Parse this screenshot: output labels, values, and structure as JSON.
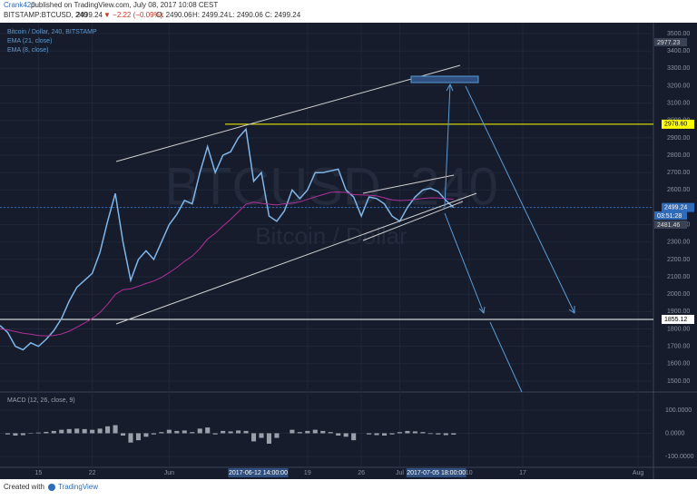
{
  "header": {
    "publisher": "Crank420",
    "published": "published on TradingView.com, July 08, 2017 10:08 CEST",
    "symbol": "BITSTAMP:BTCUSD, 240",
    "last": "2499.24",
    "change": "▼ −2.22 (−0.09%)",
    "ohlc": [
      "O: 2490.06",
      "H: 2499.24",
      "L: 2490.06",
      "C: 2499.24"
    ]
  },
  "chart_data": {
    "type": "line",
    "watermark": [
      "BTCUSD, 240",
      "Bitcoin / Dollar"
    ],
    "other_indicator": "EMA (8, close)",
    "x": [
      "2017-05-10",
      "2017-05-11",
      "2017-05-12",
      "2017-05-13",
      "2017-05-14",
      "2017-05-15",
      "2017-05-16",
      "2017-05-17",
      "2017-05-18",
      "2017-05-19",
      "2017-05-20",
      "2017-05-21",
      "2017-05-22",
      "2017-05-23",
      "2017-05-24",
      "2017-05-25",
      "2017-05-26",
      "2017-05-27",
      "2017-05-28",
      "2017-05-29",
      "2017-05-30",
      "2017-05-31",
      "2017-06-01",
      "2017-06-02",
      "2017-06-03",
      "2017-06-04",
      "2017-06-05",
      "2017-06-06",
      "2017-06-07",
      "2017-06-08",
      "2017-06-09",
      "2017-06-10",
      "2017-06-11",
      "2017-06-12",
      "2017-06-13",
      "2017-06-14",
      "2017-06-15",
      "2017-06-16",
      "2017-06-17",
      "2017-06-18",
      "2017-06-19",
      "2017-06-20",
      "2017-06-21",
      "2017-06-22",
      "2017-06-23",
      "2017-06-24",
      "2017-06-25",
      "2017-06-26",
      "2017-06-27",
      "2017-06-28",
      "2017-06-29",
      "2017-06-30",
      "2017-07-01",
      "2017-07-02",
      "2017-07-03",
      "2017-07-04",
      "2017-07-05",
      "2017-07-06",
      "2017-07-07",
      "2017-07-08"
    ],
    "series": [
      {
        "name": "Bitcoin / Dollar, 240, BITSTAMP",
        "color": "#7fb6ea",
        "values": [
          1820,
          1780,
          1700,
          1680,
          1720,
          1700,
          1740,
          1790,
          1860,
          1960,
          2040,
          2080,
          2120,
          2240,
          2420,
          2580,
          2300,
          2080,
          2200,
          2250,
          2200,
          2300,
          2400,
          2460,
          2540,
          2520,
          2700,
          2850,
          2700,
          2800,
          2820,
          2900,
          2950,
          2650,
          2700,
          2450,
          2420,
          2480,
          2600,
          2550,
          2600,
          2700,
          2700,
          2710,
          2720,
          2600,
          2560,
          2450,
          2560,
          2550,
          2520,
          2450,
          2420,
          2500,
          2560,
          2600,
          2610,
          2590,
          2540,
          2499.24
        ]
      },
      {
        "name": "EMA (21, close)",
        "color": "#b0309a",
        "values": [
          1800,
          1795,
          1785,
          1775,
          1770,
          1762,
          1760,
          1762,
          1771,
          1787,
          1810,
          1834,
          1860,
          1894,
          1942,
          1999,
          2026,
          2031,
          2046,
          2062,
          2076,
          2096,
          2124,
          2154,
          2189,
          2219,
          2263,
          2317,
          2351,
          2392,
          2431,
          2474,
          2518,
          2530,
          2523,
          2518,
          2514,
          2521,
          2524,
          2531,
          2546,
          2560,
          2573,
          2587,
          2588,
          2586,
          2573,
          2572,
          2570,
          2566,
          2555,
          2543,
          2539,
          2541,
          2546,
          2551,
          2555,
          2554,
          2550,
          2546
        ]
      }
    ],
    "xlim": [
      "2017-05-10",
      "2017-08-03"
    ],
    "xticks": [
      {
        "value": "2017-05-15",
        "label": "15"
      },
      {
        "value": "2017-05-22",
        "label": "22"
      },
      {
        "value": "2017-06-01",
        "label": "Jun"
      },
      {
        "value": "2017-06-19",
        "label": "19"
      },
      {
        "value": "2017-06-26",
        "label": "26"
      },
      {
        "value": "2017-07-01",
        "label": "Jul"
      },
      {
        "value": "2017-07-10",
        "label": "10"
      },
      {
        "value": "2017-07-17",
        "label": "17"
      },
      {
        "value": "2017-08-01",
        "label": "Aug"
      }
    ],
    "crosshair_times": [
      "2017-06-12 14:00:00",
      "2017-07-05 18:00:00"
    ],
    "ylim": [
      1437,
      3563
    ],
    "yticks": [
      {
        "value": 1500,
        "label": "1500.00"
      },
      {
        "value": 1600,
        "label": "1600.00"
      },
      {
        "value": 1700,
        "label": "1700.00"
      },
      {
        "value": 1800,
        "label": "1800.00"
      },
      {
        "value": 1900,
        "label": "1900.00"
      },
      {
        "value": 2000,
        "label": "2000.00"
      },
      {
        "value": 2100,
        "label": "2100.00"
      },
      {
        "value": 2200,
        "label": "2200.00"
      },
      {
        "value": 2300,
        "label": "2300.00"
      },
      {
        "value": 2400,
        "label": "2400.00"
      },
      {
        "value": 2500,
        "label": "2500.00"
      },
      {
        "value": 2600,
        "label": "2600.00"
      },
      {
        "value": 2700,
        "label": "2700.00"
      },
      {
        "value": 2800,
        "label": "2800.00"
      },
      {
        "value": 2900,
        "label": "2900.00"
      },
      {
        "value": 3000,
        "label": "3000.00"
      },
      {
        "value": 3100,
        "label": "3100.00"
      },
      {
        "value": 3200,
        "label": "3200.00"
      },
      {
        "value": 3300,
        "label": "3300.00"
      },
      {
        "value": 3400,
        "label": "3400.00"
      },
      {
        "value": 3500,
        "label": "3500.00"
      }
    ],
    "price_lines": [
      {
        "value": 2978.6,
        "label": "2978.60",
        "color": "#ffff00"
      },
      {
        "value": 2499.24,
        "label": "2499.24",
        "color": "#2e6bb8"
      },
      {
        "value": 1855.12,
        "label": "1855.12",
        "color": "#ffffff"
      }
    ],
    "axis_notes": [
      "2977.23",
      "03:51:28",
      "2481.46"
    ],
    "macd": {
      "title": "MACD (12, 26, close, 9)",
      "color": "#9aa0aa",
      "values": [
        0,
        -5,
        -10,
        -8,
        -2,
        3,
        6,
        10,
        15,
        18,
        20,
        18,
        15,
        20,
        30,
        35,
        -10,
        -40,
        -30,
        -15,
        -5,
        5,
        15,
        10,
        12,
        5,
        20,
        25,
        -5,
        10,
        8,
        12,
        10,
        -35,
        -20,
        -45,
        -20,
        0,
        15,
        5,
        10,
        15,
        10,
        5,
        -10,
        -15,
        -30,
        0,
        -5,
        -8,
        -10,
        -5,
        5,
        10,
        8,
        5,
        -3,
        -5,
        -8,
        -6
      ],
      "ylim": [
        -147,
        178
      ],
      "yticks": [
        {
          "value": 100,
          "label": "100.0000"
        },
        {
          "value": 0,
          "label": "0.0000"
        },
        {
          "value": -100,
          "label": "-100.0000"
        }
      ]
    }
  },
  "footer": {
    "text": "Created with",
    "brand": "TradingView"
  }
}
